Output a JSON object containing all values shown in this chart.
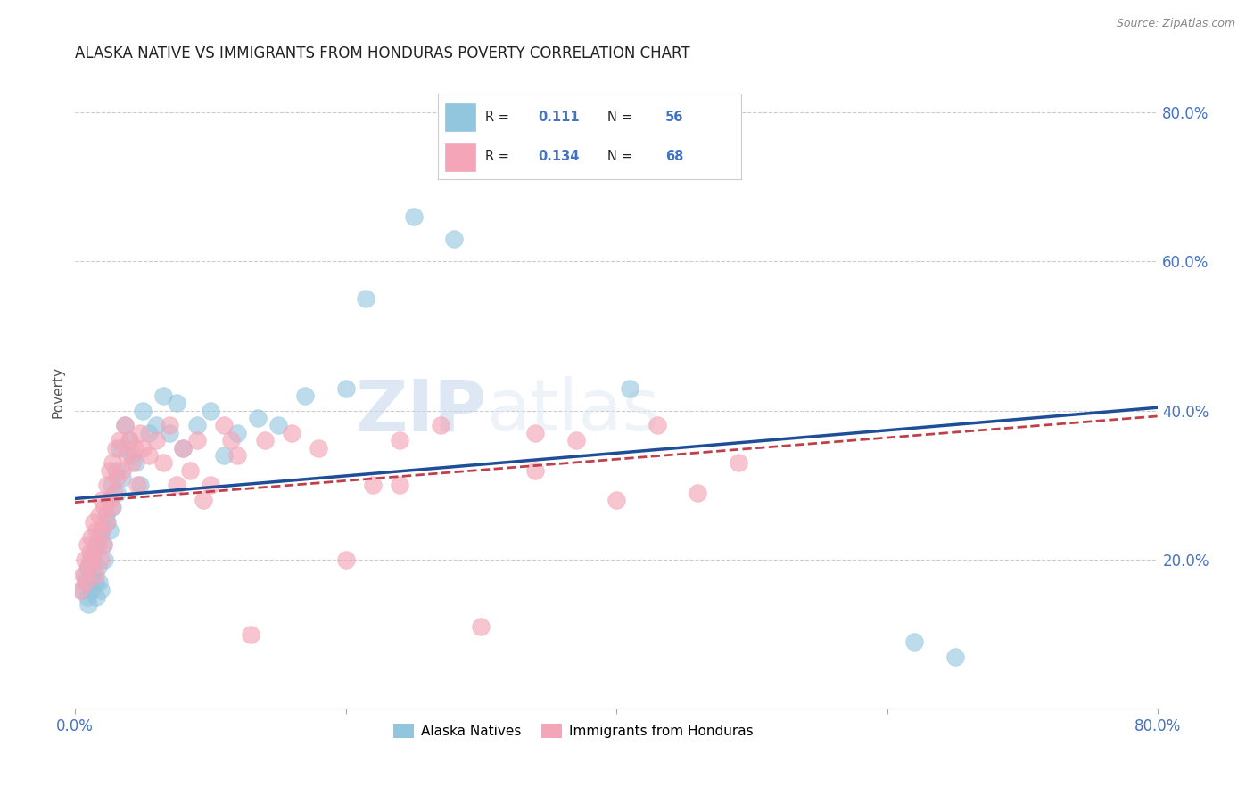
{
  "title": "ALASKA NATIVE VS IMMIGRANTS FROM HONDURAS POVERTY CORRELATION CHART",
  "source": "Source: ZipAtlas.com",
  "ylabel": "Poverty",
  "xlim": [
    0.0,
    0.8
  ],
  "ylim": [
    0.0,
    0.85
  ],
  "xtick_labels": [
    "0.0%",
    "",
    "",
    "",
    "80.0%"
  ],
  "xtick_positions": [
    0.0,
    0.2,
    0.4,
    0.6,
    0.8
  ],
  "ytick_labels": [
    "20.0%",
    "40.0%",
    "60.0%",
    "80.0%"
  ],
  "ytick_positions": [
    0.2,
    0.4,
    0.6,
    0.8
  ],
  "grid_yticks": [
    0.2,
    0.4,
    0.6,
    0.8
  ],
  "blue_color": "#92c5de",
  "pink_color": "#f4a6b8",
  "line_blue": "#1f4e99",
  "line_pink": "#c0404a",
  "watermark_zip": "ZIP",
  "watermark_atlas": "atlas",
  "label1": "Alaska Natives",
  "label2": "Immigrants from Honduras",
  "alaska_x": [
    0.005,
    0.007,
    0.008,
    0.009,
    0.01,
    0.01,
    0.011,
    0.012,
    0.013,
    0.014,
    0.015,
    0.015,
    0.016,
    0.017,
    0.018,
    0.018,
    0.019,
    0.02,
    0.021,
    0.022,
    0.023,
    0.024,
    0.025,
    0.026,
    0.027,
    0.028,
    0.03,
    0.031,
    0.033,
    0.035,
    0.037,
    0.04,
    0.042,
    0.045,
    0.048,
    0.05,
    0.055,
    0.06,
    0.065,
    0.07,
    0.075,
    0.08,
    0.09,
    0.1,
    0.11,
    0.12,
    0.135,
    0.15,
    0.17,
    0.2,
    0.215,
    0.25,
    0.28,
    0.41,
    0.62,
    0.65
  ],
  "alaska_y": [
    0.16,
    0.18,
    0.17,
    0.15,
    0.19,
    0.14,
    0.2,
    0.16,
    0.18,
    0.21,
    0.17,
    0.22,
    0.15,
    0.19,
    0.17,
    0.23,
    0.16,
    0.24,
    0.22,
    0.2,
    0.26,
    0.25,
    0.28,
    0.24,
    0.3,
    0.27,
    0.32,
    0.29,
    0.35,
    0.31,
    0.38,
    0.36,
    0.34,
    0.33,
    0.3,
    0.4,
    0.37,
    0.38,
    0.42,
    0.37,
    0.41,
    0.35,
    0.38,
    0.4,
    0.34,
    0.37,
    0.39,
    0.38,
    0.42,
    0.43,
    0.55,
    0.66,
    0.63,
    0.43,
    0.09,
    0.07
  ],
  "honduras_x": [
    0.004,
    0.006,
    0.007,
    0.008,
    0.009,
    0.01,
    0.011,
    0.012,
    0.013,
    0.014,
    0.015,
    0.016,
    0.017,
    0.018,
    0.019,
    0.02,
    0.02,
    0.021,
    0.022,
    0.023,
    0.024,
    0.025,
    0.026,
    0.027,
    0.028,
    0.029,
    0.03,
    0.031,
    0.033,
    0.035,
    0.037,
    0.038,
    0.04,
    0.042,
    0.044,
    0.046,
    0.048,
    0.05,
    0.055,
    0.06,
    0.065,
    0.07,
    0.075,
    0.08,
    0.085,
    0.09,
    0.095,
    0.1,
    0.11,
    0.12,
    0.13,
    0.14,
    0.16,
    0.18,
    0.2,
    0.22,
    0.24,
    0.27,
    0.3,
    0.34,
    0.37,
    0.4,
    0.43,
    0.46,
    0.49,
    0.115,
    0.24,
    0.34
  ],
  "honduras_y": [
    0.16,
    0.18,
    0.2,
    0.17,
    0.22,
    0.19,
    0.21,
    0.23,
    0.2,
    0.25,
    0.18,
    0.24,
    0.22,
    0.26,
    0.2,
    0.24,
    0.28,
    0.22,
    0.27,
    0.25,
    0.3,
    0.28,
    0.32,
    0.27,
    0.33,
    0.29,
    0.35,
    0.31,
    0.36,
    0.32,
    0.38,
    0.34,
    0.36,
    0.33,
    0.35,
    0.3,
    0.37,
    0.35,
    0.34,
    0.36,
    0.33,
    0.38,
    0.3,
    0.35,
    0.32,
    0.36,
    0.28,
    0.3,
    0.38,
    0.34,
    0.1,
    0.36,
    0.37,
    0.35,
    0.2,
    0.3,
    0.36,
    0.38,
    0.11,
    0.32,
    0.36,
    0.28,
    0.38,
    0.29,
    0.33,
    0.36,
    0.3,
    0.37
  ]
}
